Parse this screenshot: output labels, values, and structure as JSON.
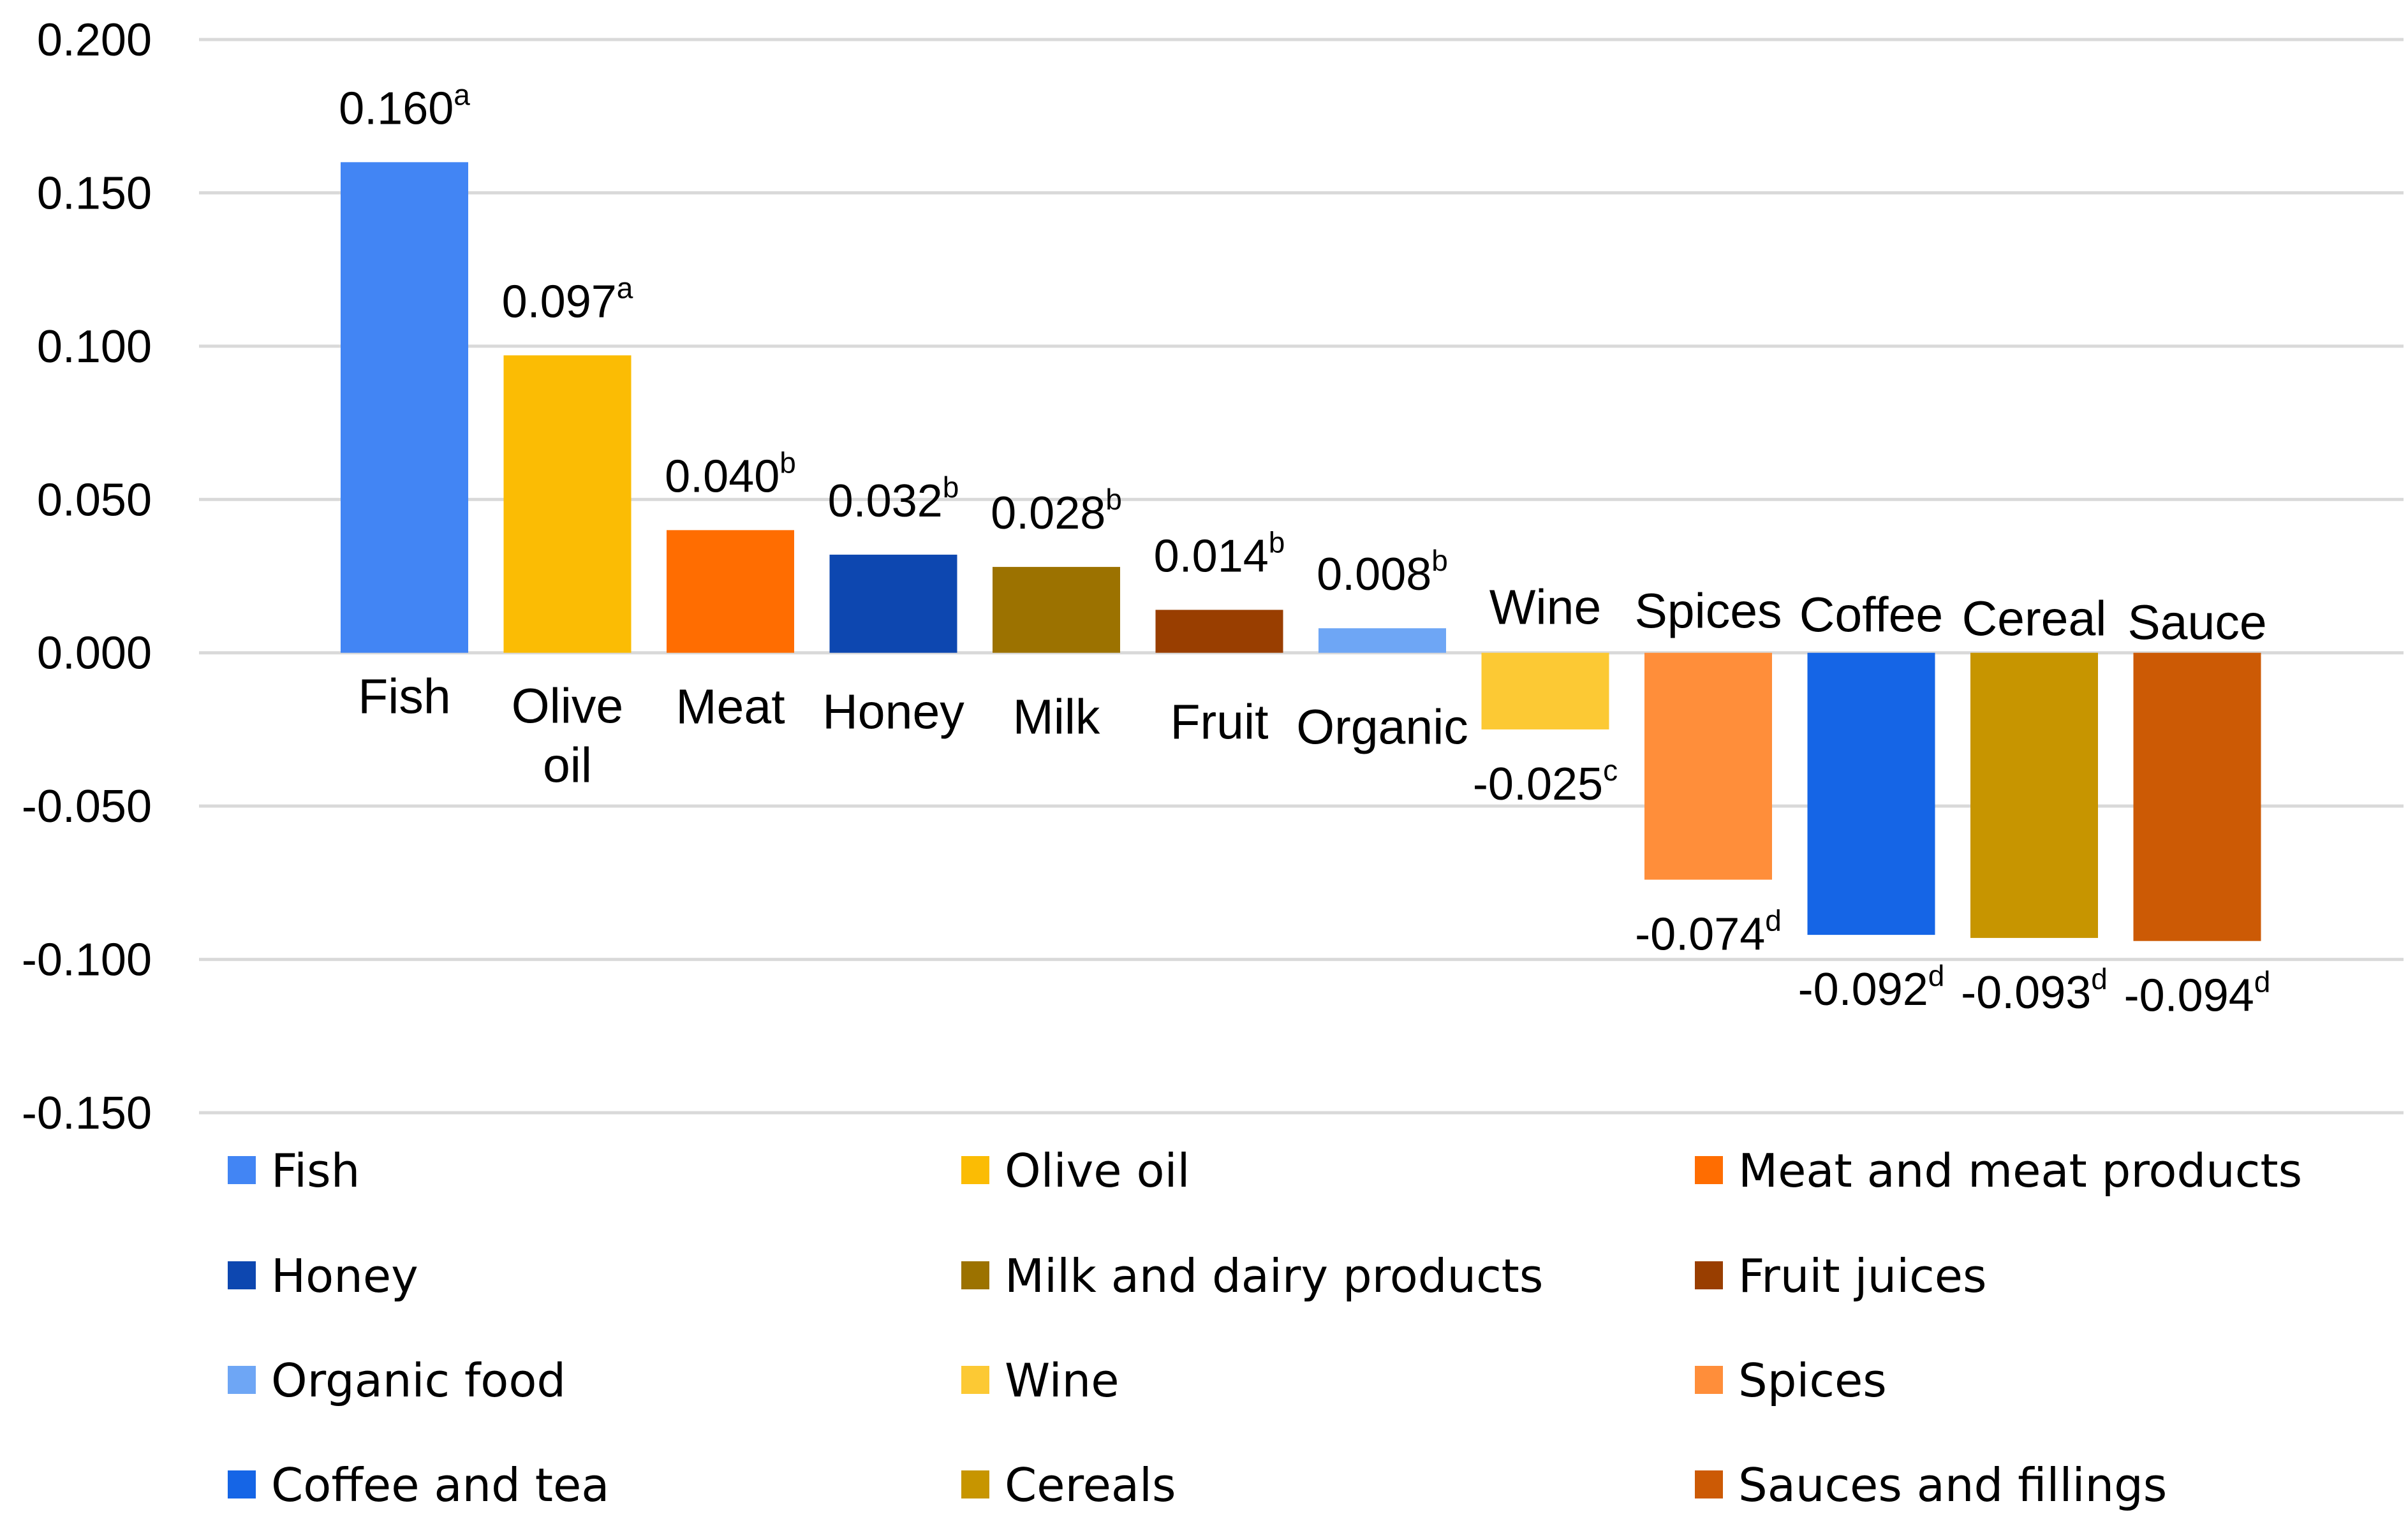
{
  "chart_data": {
    "type": "bar",
    "title": "",
    "xlabel": "",
    "ylabel": "",
    "ylim": [
      -0.15,
      0.2
    ],
    "yticks": [
      0.2,
      0.15,
      0.1,
      0.05,
      0.0,
      -0.05,
      -0.1,
      -0.15
    ],
    "ytick_labels": [
      "0.200",
      "0.150",
      "0.100",
      "0.050",
      "0.000",
      "-0.050",
      "-0.100",
      "-0.150"
    ],
    "grid": true,
    "legend_position": "bottom",
    "categories": [
      "Fish",
      "Olive oil",
      "Meat",
      "Honey",
      "Milk",
      "Fruit",
      "Organic",
      "Wine",
      "Spices",
      "Coffee",
      "Cereal",
      "Sauce"
    ],
    "values": [
      0.16,
      0.097,
      0.04,
      0.032,
      0.028,
      0.014,
      0.008,
      -0.025,
      -0.074,
      -0.092,
      -0.093,
      -0.094
    ],
    "value_labels": [
      "0.160",
      "0.097",
      "0.040",
      "0.032",
      "0.028",
      "0.014",
      "0.008",
      "-0.025",
      "-0.074",
      "-0.092",
      "-0.093",
      "-0.094"
    ],
    "significance": [
      "a",
      "a",
      "b",
      "b",
      "b",
      "b",
      "b",
      "c",
      "d",
      "d",
      "d",
      "d"
    ],
    "colors": [
      "#4285F4",
      "#FBBC04",
      "#FF6D01",
      "#0D47B0",
      "#9C7200",
      "#993E00",
      "#6EA6F5",
      "#FCC934",
      "#FF8E3A",
      "#1565E6",
      "#C79500",
      "#CC5A05"
    ],
    "legend": [
      "Fish",
      "Olive oil",
      "Meat and meat products",
      "Honey",
      "Milk and dairy products",
      "Fruit juices",
      "Organic food",
      "Wine",
      "Spices",
      "Coffee and tea",
      "Cereals",
      "Sauces and fillings"
    ]
  }
}
